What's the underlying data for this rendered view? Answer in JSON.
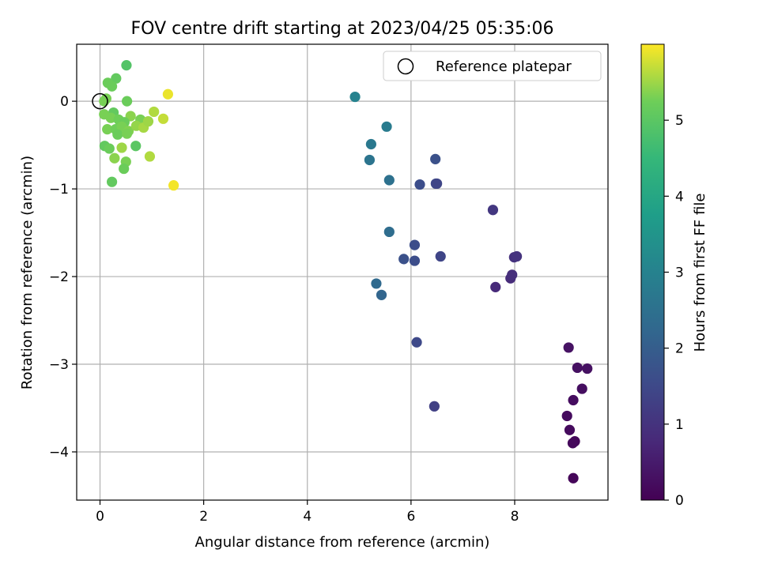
{
  "chart_data": {
    "type": "scatter",
    "title": "FOV centre drift starting at 2023/04/25 05:35:06",
    "xlabel": "Angular distance from reference (arcmin)",
    "ylabel": "Rotation from reference (arcmin)",
    "colorbar_label": "Hours from first FF file",
    "xlim": [
      -0.45,
      9.8
    ],
    "ylim": [
      -4.55,
      0.65
    ],
    "xticks": [
      0,
      2,
      4,
      6,
      8
    ],
    "yticks": [
      0,
      -1,
      -2,
      -3,
      -4
    ],
    "colorbar_range": [
      0,
      6.0
    ],
    "colorbar_ticks": [
      0,
      1,
      2,
      3,
      4,
      5
    ],
    "colormap": "viridis",
    "grid": true,
    "legend": {
      "placement": "top-right",
      "entries": [
        "Reference platepar"
      ]
    },
    "reference_point": {
      "x": 0,
      "y": 0
    },
    "points": [
      {
        "x": 9.13,
        "y": -4.3,
        "h": 0.1
      },
      {
        "x": 9.16,
        "y": -3.88,
        "h": 0.12
      },
      {
        "x": 9.12,
        "y": -3.9,
        "h": 0.15
      },
      {
        "x": 9.06,
        "y": -3.75,
        "h": 0.18
      },
      {
        "x": 9.01,
        "y": -3.59,
        "h": 0.2
      },
      {
        "x": 9.13,
        "y": -3.41,
        "h": 0.22
      },
      {
        "x": 9.3,
        "y": -3.28,
        "h": 0.25
      },
      {
        "x": 9.21,
        "y": -3.04,
        "h": 0.28
      },
      {
        "x": 9.4,
        "y": -3.05,
        "h": 0.3
      },
      {
        "x": 9.04,
        "y": -2.81,
        "h": 0.32
      },
      {
        "x": 7.63,
        "y": -2.12,
        "h": 0.8
      },
      {
        "x": 7.92,
        "y": -2.02,
        "h": 0.85
      },
      {
        "x": 7.95,
        "y": -1.98,
        "h": 0.9
      },
      {
        "x": 7.99,
        "y": -1.78,
        "h": 0.95
      },
      {
        "x": 8.04,
        "y": -1.77,
        "h": 1.0
      },
      {
        "x": 7.58,
        "y": -1.24,
        "h": 1.1
      },
      {
        "x": 6.45,
        "y": -3.48,
        "h": 1.3
      },
      {
        "x": 6.11,
        "y": -2.75,
        "h": 1.5
      },
      {
        "x": 6.57,
        "y": -1.77,
        "h": 1.4
      },
      {
        "x": 6.07,
        "y": -1.82,
        "h": 1.6
      },
      {
        "x": 5.86,
        "y": -1.8,
        "h": 1.7
      },
      {
        "x": 6.07,
        "y": -1.64,
        "h": 1.6
      },
      {
        "x": 6.48,
        "y": -0.94,
        "h": 1.5
      },
      {
        "x": 6.5,
        "y": -0.94,
        "h": 1.4
      },
      {
        "x": 6.17,
        "y": -0.95,
        "h": 1.6
      },
      {
        "x": 6.47,
        "y": -0.66,
        "h": 1.7
      },
      {
        "x": 5.43,
        "y": -2.21,
        "h": 2.2
      },
      {
        "x": 5.33,
        "y": -2.08,
        "h": 2.3
      },
      {
        "x": 5.58,
        "y": -1.49,
        "h": 2.4
      },
      {
        "x": 5.58,
        "y": -0.9,
        "h": 2.5
      },
      {
        "x": 5.2,
        "y": -0.67,
        "h": 2.6
      },
      {
        "x": 5.23,
        "y": -0.49,
        "h": 2.7
      },
      {
        "x": 5.53,
        "y": -0.29,
        "h": 2.8
      },
      {
        "x": 4.92,
        "y": 0.05,
        "h": 3.0
      },
      {
        "x": 0.51,
        "y": 0.41,
        "h": 4.9
      },
      {
        "x": 0.31,
        "y": 0.26,
        "h": 5.1
      },
      {
        "x": 0.15,
        "y": 0.21,
        "h": 5.2
      },
      {
        "x": 0.23,
        "y": 0.17,
        "h": 5.2
      },
      {
        "x": 0.08,
        "y": 0.0,
        "h": 5.3
      },
      {
        "x": 0.12,
        "y": 0.03,
        "h": 5.3
      },
      {
        "x": 0.52,
        "y": 0.0,
        "h": 5.2
      },
      {
        "x": 0.26,
        "y": -0.13,
        "h": 5.1
      },
      {
        "x": 0.08,
        "y": -0.15,
        "h": 5.3
      },
      {
        "x": 0.21,
        "y": -0.19,
        "h": 5.3
      },
      {
        "x": 0.36,
        "y": -0.21,
        "h": 5.25
      },
      {
        "x": 0.59,
        "y": -0.17,
        "h": 5.4
      },
      {
        "x": 0.47,
        "y": -0.24,
        "h": 5.2
      },
      {
        "x": 0.78,
        "y": -0.21,
        "h": 5.3
      },
      {
        "x": 0.14,
        "y": -0.32,
        "h": 5.3
      },
      {
        "x": 0.3,
        "y": -0.32,
        "h": 5.25
      },
      {
        "x": 0.42,
        "y": -0.29,
        "h": 5.3
      },
      {
        "x": 0.55,
        "y": -0.34,
        "h": 5.35
      },
      {
        "x": 0.7,
        "y": -0.28,
        "h": 5.45
      },
      {
        "x": 0.84,
        "y": -0.3,
        "h": 5.55
      },
      {
        "x": 0.93,
        "y": -0.23,
        "h": 5.5
      },
      {
        "x": 0.34,
        "y": -0.38,
        "h": 5.2
      },
      {
        "x": 0.52,
        "y": -0.37,
        "h": 5.3
      },
      {
        "x": 1.04,
        "y": -0.12,
        "h": 5.6
      },
      {
        "x": 1.22,
        "y": -0.2,
        "h": 5.7
      },
      {
        "x": 1.31,
        "y": 0.08,
        "h": 5.9
      },
      {
        "x": 0.09,
        "y": -0.51,
        "h": 5.1
      },
      {
        "x": 0.18,
        "y": -0.54,
        "h": 5.2
      },
      {
        "x": 0.42,
        "y": -0.53,
        "h": 5.5
      },
      {
        "x": 0.69,
        "y": -0.51,
        "h": 5.0
      },
      {
        "x": 0.28,
        "y": -0.65,
        "h": 5.4
      },
      {
        "x": 0.5,
        "y": -0.69,
        "h": 5.3
      },
      {
        "x": 0.46,
        "y": -0.77,
        "h": 5.2
      },
      {
        "x": 0.96,
        "y": -0.63,
        "h": 5.6
      },
      {
        "x": 0.23,
        "y": -0.92,
        "h": 5.1
      },
      {
        "x": 1.42,
        "y": -0.96,
        "h": 5.95
      }
    ]
  }
}
